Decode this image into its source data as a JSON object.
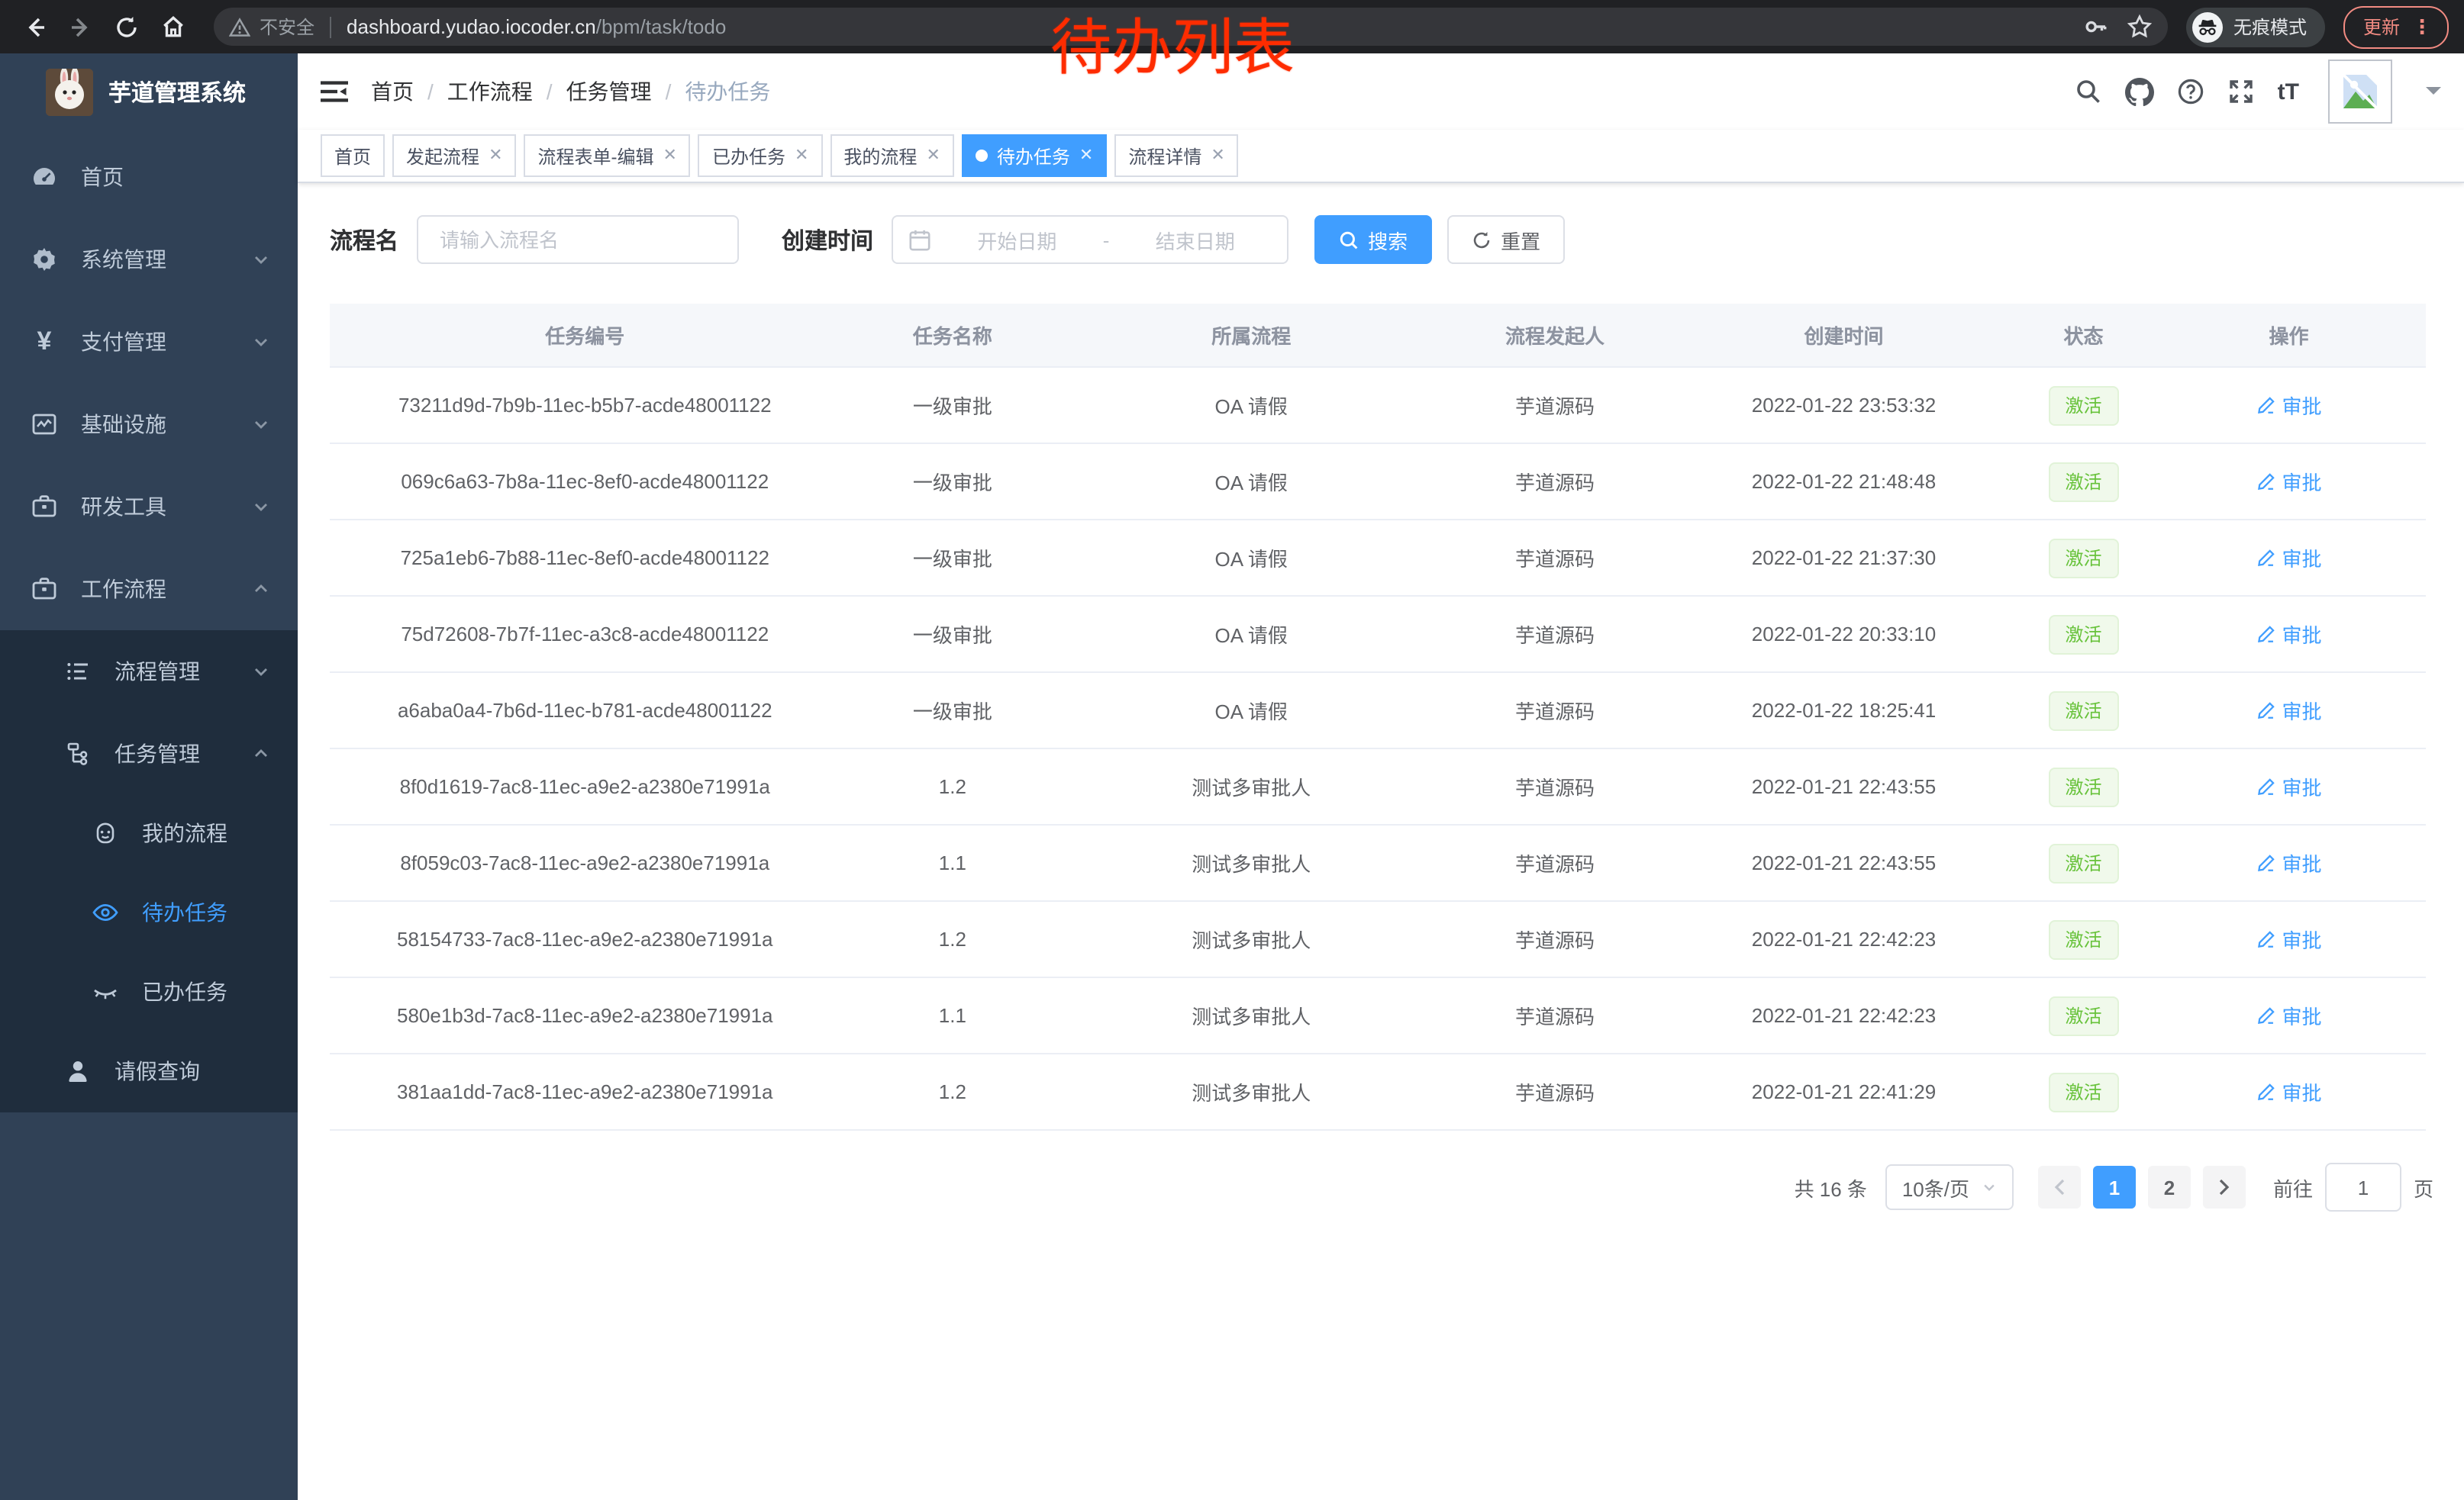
{
  "browser": {
    "security_label": "不安全",
    "url_host": "dashboard.yudao.iocoder.cn",
    "url_path": "/bpm/task/todo",
    "incognito_label": "无痕模式",
    "update_label": "更新"
  },
  "annotation": {
    "text": "待办列表",
    "color": "#fe2c00"
  },
  "sidebar": {
    "title": "芋道管理系统",
    "items": [
      {
        "label": "首页",
        "level": 1
      },
      {
        "label": "系统管理",
        "level": 1,
        "expandable": true
      },
      {
        "label": "支付管理",
        "level": 1,
        "expandable": true
      },
      {
        "label": "基础设施",
        "level": 1,
        "expandable": true
      },
      {
        "label": "研发工具",
        "level": 1,
        "expandable": true
      },
      {
        "label": "工作流程",
        "level": 1,
        "expandable": true,
        "expanded": true
      },
      {
        "label": "流程管理",
        "level": 2,
        "expandable": true
      },
      {
        "label": "任务管理",
        "level": 2,
        "expandable": true,
        "expanded": true
      },
      {
        "label": "我的流程",
        "level": 3
      },
      {
        "label": "待办任务",
        "level": 3,
        "active": true
      },
      {
        "label": "已办任务",
        "level": 3
      },
      {
        "label": "请假查询",
        "level": 2
      }
    ]
  },
  "header": {
    "breadcrumb": [
      "首页",
      "工作流程",
      "任务管理",
      "待办任务"
    ],
    "font_size_icon_label": "tT"
  },
  "tabs": [
    {
      "label": "首页",
      "closable": false,
      "active": false
    },
    {
      "label": "发起流程",
      "closable": true,
      "active": false
    },
    {
      "label": "流程表单-编辑",
      "closable": true,
      "active": false
    },
    {
      "label": "已办任务",
      "closable": true,
      "active": false
    },
    {
      "label": "我的流程",
      "closable": true,
      "active": false
    },
    {
      "label": "待办任务",
      "closable": true,
      "active": true
    },
    {
      "label": "流程详情",
      "closable": true,
      "active": false
    }
  ],
  "filters": {
    "name_label": "流程名",
    "name_placeholder": "请输入流程名",
    "time_label": "创建时间",
    "start_placeholder": "开始日期",
    "range_separator": "-",
    "end_placeholder": "结束日期",
    "search_label": "搜索",
    "reset_label": "重置"
  },
  "table": {
    "columns": [
      "任务编号",
      "任务名称",
      "所属流程",
      "流程发起人",
      "创建时间",
      "状态",
      "操作"
    ],
    "rows": [
      {
        "id": "73211d9d-7b9b-11ec-b5b7-acde48001122",
        "name": "一级审批",
        "process": "OA 请假",
        "starter": "芋道源码",
        "created": "2022-01-22 23:53:32",
        "status": "激活",
        "action": "审批"
      },
      {
        "id": "069c6a63-7b8a-11ec-8ef0-acde48001122",
        "name": "一级审批",
        "process": "OA 请假",
        "starter": "芋道源码",
        "created": "2022-01-22 21:48:48",
        "status": "激活",
        "action": "审批"
      },
      {
        "id": "725a1eb6-7b88-11ec-8ef0-acde48001122",
        "name": "一级审批",
        "process": "OA 请假",
        "starter": "芋道源码",
        "created": "2022-01-22 21:37:30",
        "status": "激活",
        "action": "审批"
      },
      {
        "id": "75d72608-7b7f-11ec-a3c8-acde48001122",
        "name": "一级审批",
        "process": "OA 请假",
        "starter": "芋道源码",
        "created": "2022-01-22 20:33:10",
        "status": "激活",
        "action": "审批"
      },
      {
        "id": "a6aba0a4-7b6d-11ec-b781-acde48001122",
        "name": "一级审批",
        "process": "OA 请假",
        "starter": "芋道源码",
        "created": "2022-01-22 18:25:41",
        "status": "激活",
        "action": "审批"
      },
      {
        "id": "8f0d1619-7ac8-11ec-a9e2-a2380e71991a",
        "name": "1.2",
        "process": "测试多审批人",
        "starter": "芋道源码",
        "created": "2022-01-21 22:43:55",
        "status": "激活",
        "action": "审批"
      },
      {
        "id": "8f059c03-7ac8-11ec-a9e2-a2380e71991a",
        "name": "1.1",
        "process": "测试多审批人",
        "starter": "芋道源码",
        "created": "2022-01-21 22:43:55",
        "status": "激活",
        "action": "审批"
      },
      {
        "id": "58154733-7ac8-11ec-a9e2-a2380e71991a",
        "name": "1.2",
        "process": "测试多审批人",
        "starter": "芋道源码",
        "created": "2022-01-21 22:42:23",
        "status": "激活",
        "action": "审批"
      },
      {
        "id": "580e1b3d-7ac8-11ec-a9e2-a2380e71991a",
        "name": "1.1",
        "process": "测试多审批人",
        "starter": "芋道源码",
        "created": "2022-01-21 22:42:23",
        "status": "激活",
        "action": "审批"
      },
      {
        "id": "381aa1dd-7ac8-11ec-a9e2-a2380e71991a",
        "name": "1.2",
        "process": "测试多审批人",
        "starter": "芋道源码",
        "created": "2022-01-21 22:41:29",
        "status": "激活",
        "action": "审批"
      }
    ]
  },
  "pagination": {
    "total": "共 16 条",
    "page_size": "10条/页",
    "pages": [
      "1",
      "2"
    ],
    "active_page": "1",
    "goto_label": "前往",
    "goto_value": "1",
    "page_unit": "页"
  },
  "colors": {
    "accent": "#409eff",
    "success": "#67c23a",
    "sidebar_bg": "#304156",
    "submenu_bg": "#1f2d3d",
    "annotation_red": "#fe2c00"
  }
}
